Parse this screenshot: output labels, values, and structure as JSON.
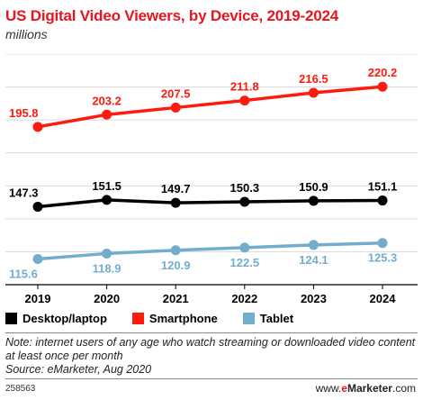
{
  "header": {
    "title": "US Digital Video Viewers, by Device, 2019-2024",
    "subtitle": "millions"
  },
  "legend": {
    "desktop": "Desktop/laptop",
    "smartphone": "Smartphone",
    "tablet": "Tablet"
  },
  "colors": {
    "desktop": "#000000",
    "smartphone": "#ff1a0f",
    "tablet": "#72aecb",
    "grid": "#d9d9d9",
    "title": "#e8141e"
  },
  "note": {
    "text": "Note: internet users of any age who watch streaming or downloaded video content at least once per month",
    "source": "Source: eMarketer, Aug 2020"
  },
  "footer": {
    "id": "258563",
    "brand_prefix": "www.",
    "brand_e": "e",
    "brand_marketer": "Marketer",
    "brand_suffix": ".com"
  },
  "chart_data": {
    "type": "line",
    "title": "US Digital Video Viewers, by Device, 2019-2024",
    "subtitle": "millions",
    "x": [
      "2019",
      "2020",
      "2021",
      "2022",
      "2023",
      "2024"
    ],
    "ylim": [
      100,
      240
    ],
    "grid": true,
    "legend_position": "bottom",
    "series": [
      {
        "name": "Smartphone",
        "key": "smartphone",
        "values": [
          195.8,
          203.2,
          207.5,
          211.8,
          216.5,
          220.2
        ]
      },
      {
        "name": "Desktop/laptop",
        "key": "desktop",
        "values": [
          147.3,
          151.5,
          149.7,
          150.3,
          150.9,
          151.1
        ]
      },
      {
        "name": "Tablet",
        "key": "tablet",
        "values": [
          115.6,
          118.9,
          120.9,
          122.5,
          124.1,
          125.3
        ]
      }
    ]
  }
}
